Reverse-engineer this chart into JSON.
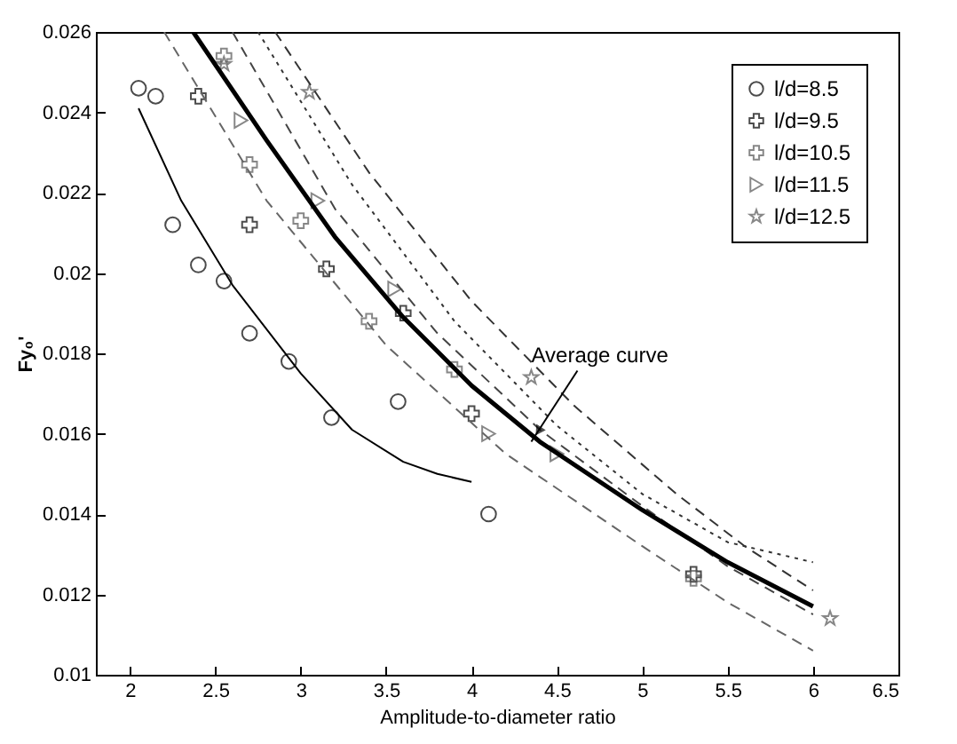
{
  "chart_data": {
    "type": "scatter",
    "xlabel": "Amplitude-to-diameter ratio",
    "ylabel": "Fy₀'",
    "xlim": [
      1.8,
      6.5
    ],
    "xticks": [
      2,
      2.5,
      3,
      3.5,
      4,
      4.5,
      5,
      5.5,
      6,
      6.5
    ],
    "ylim": [
      0.01,
      0.026
    ],
    "yticks": [
      0.01,
      0.012,
      0.014,
      0.016,
      0.018,
      0.02,
      0.022,
      0.024,
      0.026
    ],
    "grid": false,
    "legend": "top right",
    "annotations": [
      {
        "text": "Average curve",
        "x": 4.35,
        "y": 0.0158
      }
    ],
    "series": [
      {
        "name": "l/d=8.5",
        "marker": "circle",
        "color": "#000000",
        "x": [
          2.05,
          2.15,
          2.25,
          2.4,
          2.55,
          2.7,
          2.93,
          3.18,
          3.57,
          4.1
        ],
        "values": [
          0.0246,
          0.0244,
          0.0212,
          0.0202,
          0.0198,
          0.0185,
          0.0178,
          0.0164,
          0.0168,
          0.014
        ]
      },
      {
        "name": "l/d=9.5",
        "marker": "cross",
        "color": "#000000",
        "x": [
          2.4,
          2.7,
          3.15,
          3.6,
          4.0,
          5.3
        ],
        "values": [
          0.0244,
          0.0212,
          0.0201,
          0.019,
          0.0165,
          0.0125
        ]
      },
      {
        "name": "l/d=10.5",
        "marker": "cross",
        "color": "#555555",
        "x": [
          2.55,
          2.7,
          3.0,
          3.4,
          3.9,
          5.3
        ],
        "values": [
          0.0254,
          0.0227,
          0.0213,
          0.0188,
          0.0176,
          0.0124
        ]
      },
      {
        "name": "l/d=11.5",
        "marker": "triangle",
        "color": "#555555",
        "x": [
          2.65,
          3.1,
          3.55,
          4.1,
          4.5
        ],
        "values": [
          0.0238,
          0.0218,
          0.0196,
          0.016,
          0.0155
        ]
      },
      {
        "name": "l/d=12.5",
        "marker": "star",
        "color": "#555555",
        "x": [
          2.55,
          3.05,
          4.35,
          6.1
        ],
        "values": [
          0.0252,
          0.0245,
          0.0174,
          0.0114
        ]
      },
      {
        "type": "line",
        "line_style": "solid",
        "color": "#000000",
        "x": [
          2.05,
          2.3,
          2.6,
          3.0,
          3.3,
          3.6,
          3.8,
          4.0
        ],
        "values": [
          0.0241,
          0.0218,
          0.0197,
          0.0175,
          0.0161,
          0.0153,
          0.015,
          0.0148
        ]
      },
      {
        "type": "line",
        "line_style": "dashed",
        "color": "#666666",
        "x": [
          2.2,
          2.8,
          3.5,
          4.2,
          5.0,
          5.5,
          6.0
        ],
        "values": [
          0.026,
          0.0218,
          0.0182,
          0.0155,
          0.0132,
          0.0118,
          0.0106
        ]
      },
      {
        "type": "line",
        "line_style": "dashed",
        "color": "#444444",
        "x": [
          2.6,
          3.2,
          3.8,
          4.4,
          5.0,
          5.5,
          6.0
        ],
        "values": [
          0.026,
          0.0216,
          0.0185,
          0.0161,
          0.0142,
          0.0127,
          0.0115
        ]
      },
      {
        "type": "line",
        "line_style": "dotted",
        "color": "#333333",
        "x": [
          2.75,
          3.3,
          3.9,
          4.5,
          5.0,
          5.5,
          6.0
        ],
        "values": [
          0.026,
          0.0222,
          0.0188,
          0.0162,
          0.0145,
          0.0133,
          0.0128
        ]
      },
      {
        "type": "line",
        "line_style": "dashed",
        "color": "#333333",
        "x": [
          2.85,
          3.4,
          4.0,
          4.6,
          5.2,
          5.6,
          6.0
        ],
        "values": [
          0.026,
          0.0225,
          0.0193,
          0.0167,
          0.0145,
          0.0132,
          0.0121
        ]
      },
      {
        "type": "line",
        "line_style": "solid",
        "color": "#000000",
        "x": [
          2.37,
          2.8,
          3.2,
          3.6,
          4.0,
          4.4,
          5.0,
          5.5,
          6.0
        ],
        "values": [
          0.026,
          0.0233,
          0.0209,
          0.0189,
          0.0172,
          0.0158,
          0.0141,
          0.0128,
          0.0117
        ]
      }
    ]
  }
}
